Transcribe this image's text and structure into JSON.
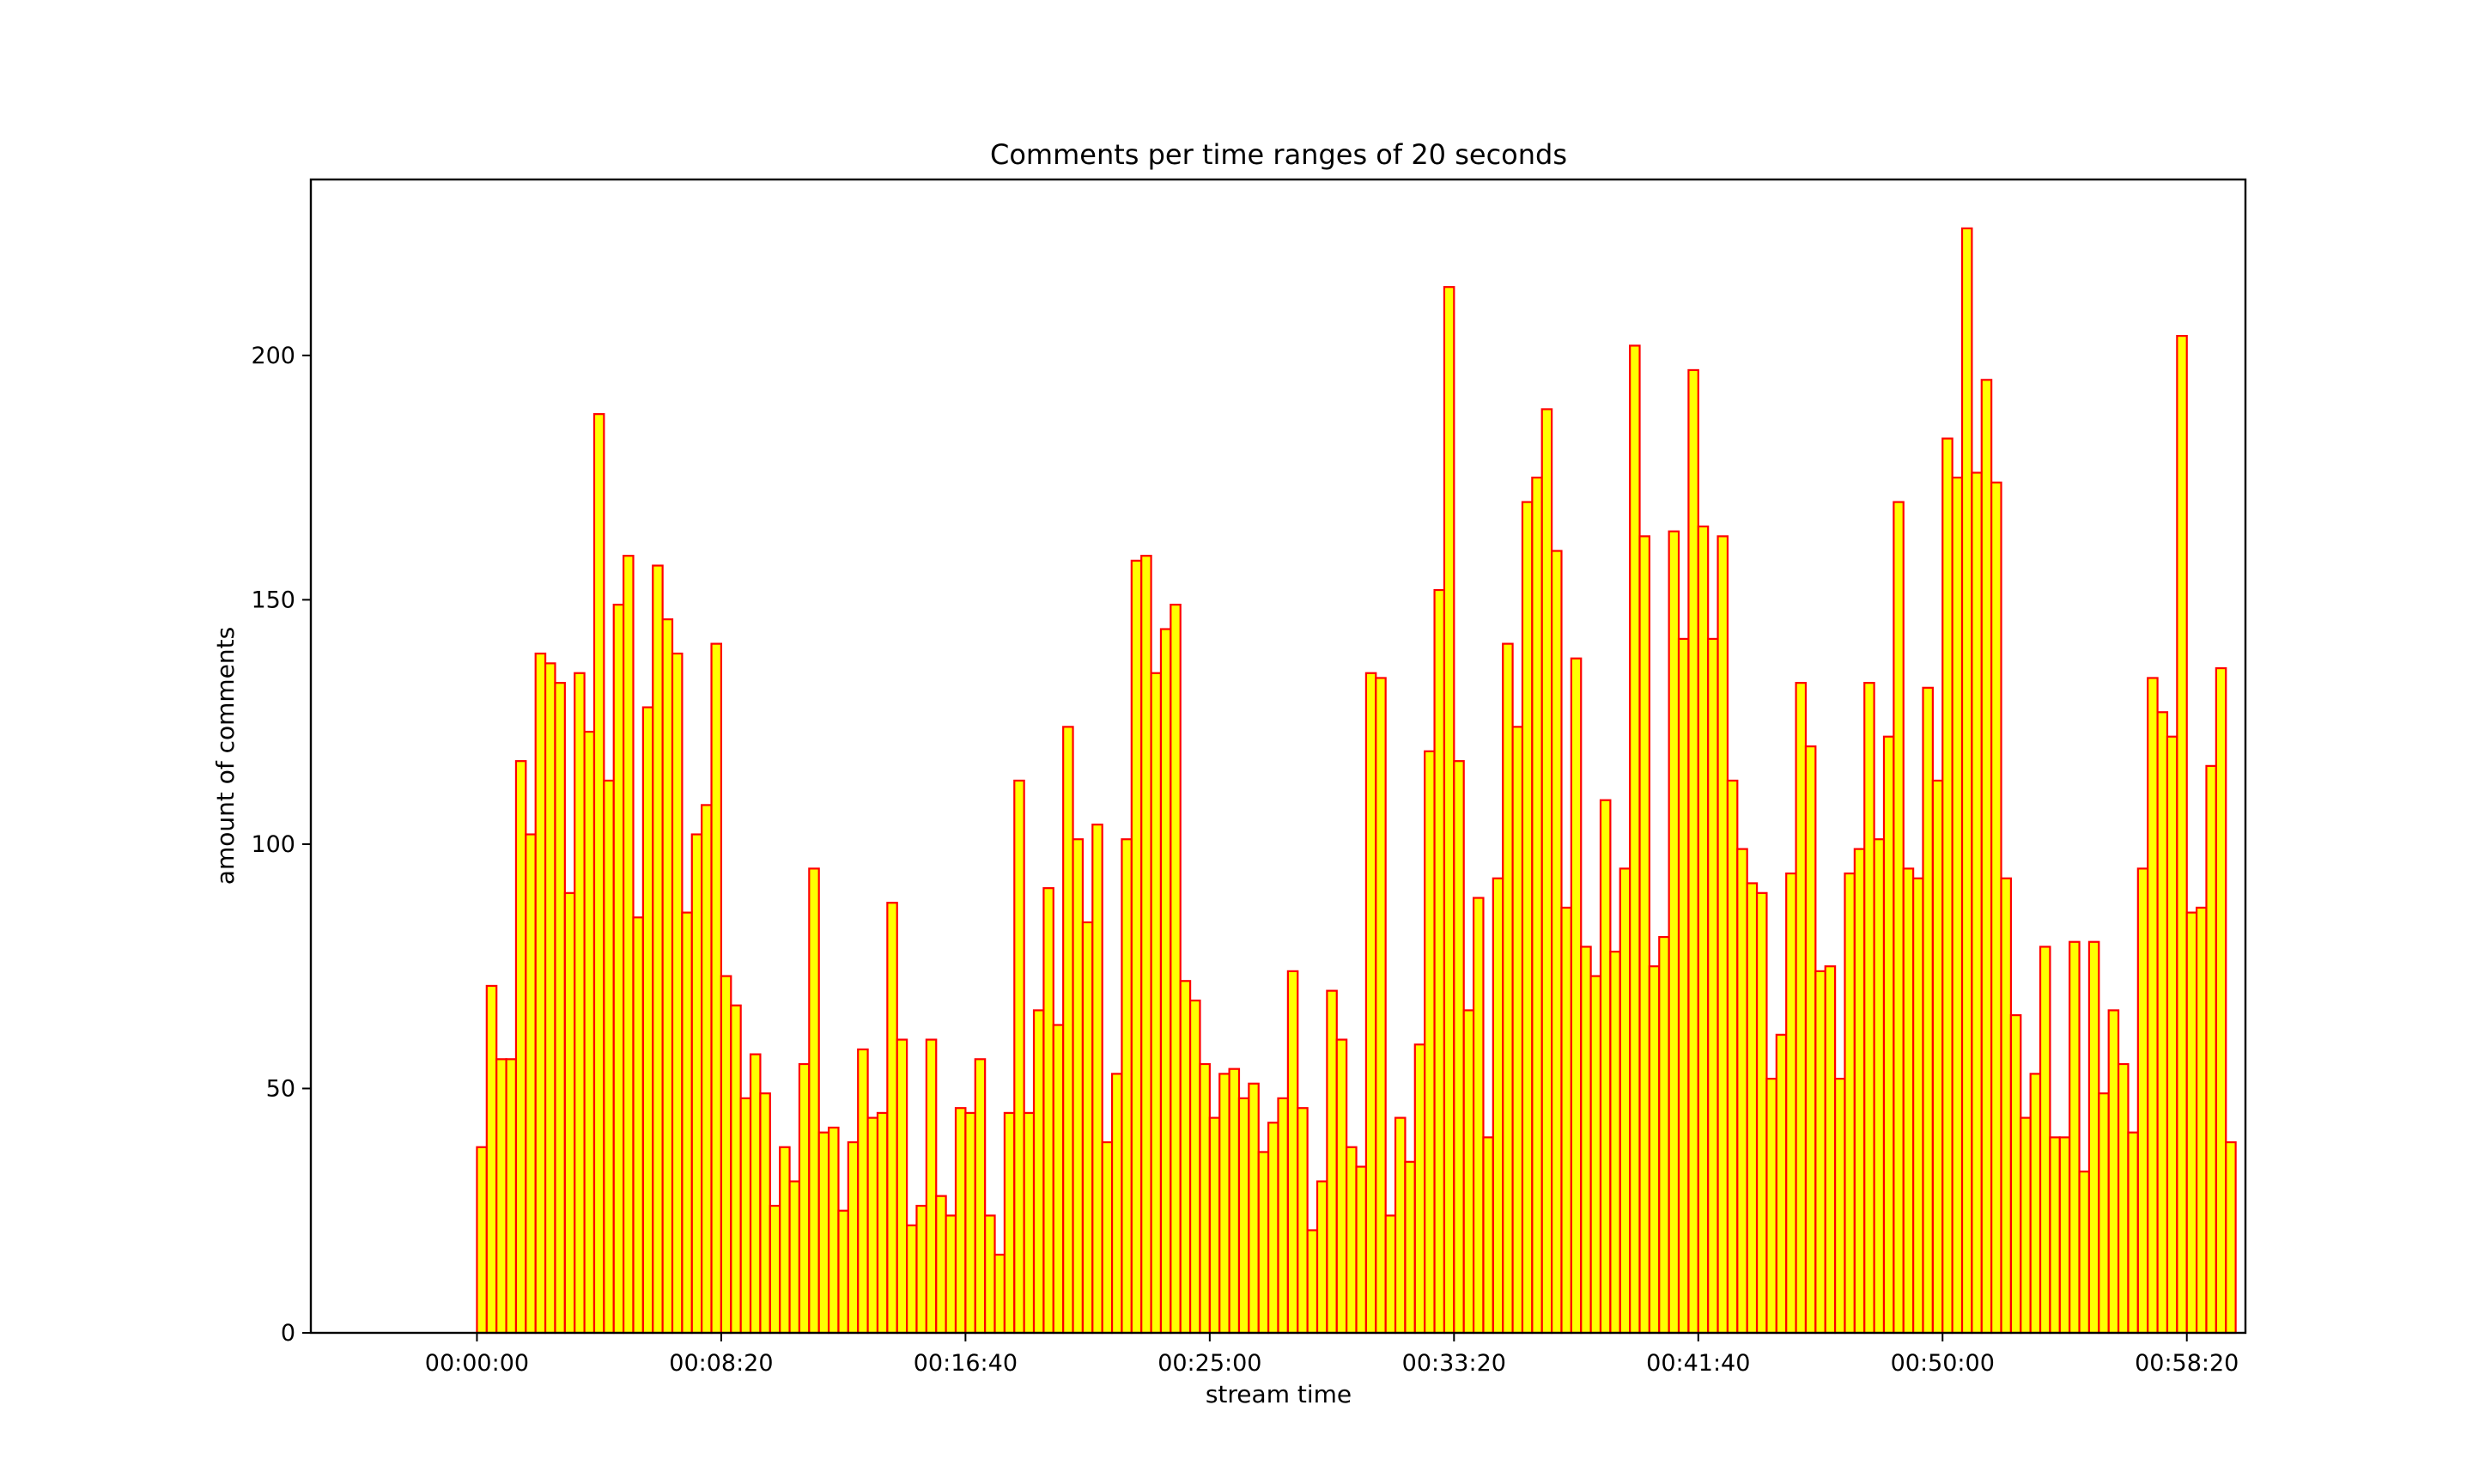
{
  "chart_data": {
    "type": "bar",
    "title": "Comments per time ranges of 20 seconds",
    "xlabel": "stream time",
    "ylabel": "amount of comments",
    "bin_seconds": 20,
    "ylim": [
      0,
      236
    ],
    "xlim_seconds": [
      -340,
      3620
    ],
    "x_ticks": [
      {
        "label": "00:00:00",
        "seconds": 0
      },
      {
        "label": "00:08:20",
        "seconds": 500
      },
      {
        "label": "00:16:40",
        "seconds": 1000
      },
      {
        "label": "00:25:00",
        "seconds": 1500
      },
      {
        "label": "00:33:20",
        "seconds": 2000
      },
      {
        "label": "00:41:40",
        "seconds": 2500
      },
      {
        "label": "00:50:00",
        "seconds": 3000
      },
      {
        "label": "00:58:20",
        "seconds": 3500
      }
    ],
    "y_ticks": [
      {
        "label": "0",
        "value": 0
      },
      {
        "label": "50",
        "value": 50
      },
      {
        "label": "100",
        "value": 100
      },
      {
        "label": "150",
        "value": 150
      },
      {
        "label": "200",
        "value": 200
      }
    ],
    "grid": false,
    "colors": {
      "bar_fill": "#ffff00",
      "bar_edge": "#ff0000"
    },
    "values": [
      38,
      71,
      56,
      56,
      117,
      102,
      139,
      137,
      133,
      90,
      135,
      123,
      188,
      113,
      149,
      159,
      85,
      128,
      157,
      146,
      139,
      86,
      102,
      108,
      141,
      73,
      67,
      48,
      57,
      49,
      26,
      38,
      31,
      55,
      95,
      41,
      42,
      25,
      39,
      58,
      44,
      45,
      88,
      60,
      22,
      26,
      60,
      28,
      24,
      46,
      45,
      56,
      24,
      16,
      45,
      113,
      45,
      66,
      91,
      63,
      124,
      101,
      84,
      104,
      39,
      53,
      101,
      158,
      159,
      135,
      144,
      149,
      72,
      68,
      55,
      44,
      53,
      54,
      48,
      51,
      37,
      43,
      48,
      74,
      46,
      21,
      31,
      70,
      60,
      38,
      34,
      135,
      134,
      24,
      44,
      35,
      59,
      119,
      152,
      214,
      117,
      66,
      89,
      40,
      93,
      141,
      124,
      170,
      175,
      189,
      160,
      87,
      138,
      79,
      73,
      109,
      78,
      95,
      202,
      163,
      75,
      81,
      164,
      142,
      197,
      165,
      142,
      163,
      113,
      99,
      92,
      90,
      52,
      61,
      94,
      133,
      120,
      74,
      75,
      52,
      94,
      99,
      133,
      101,
      122,
      170,
      95,
      93,
      132,
      113,
      183,
      175,
      226,
      176,
      195,
      174,
      93,
      65,
      44,
      53,
      79,
      40,
      40,
      80,
      33,
      80,
      49,
      66,
      55,
      41,
      95,
      134,
      127,
      122,
      204,
      86,
      87,
      116,
      136,
      39
    ]
  }
}
